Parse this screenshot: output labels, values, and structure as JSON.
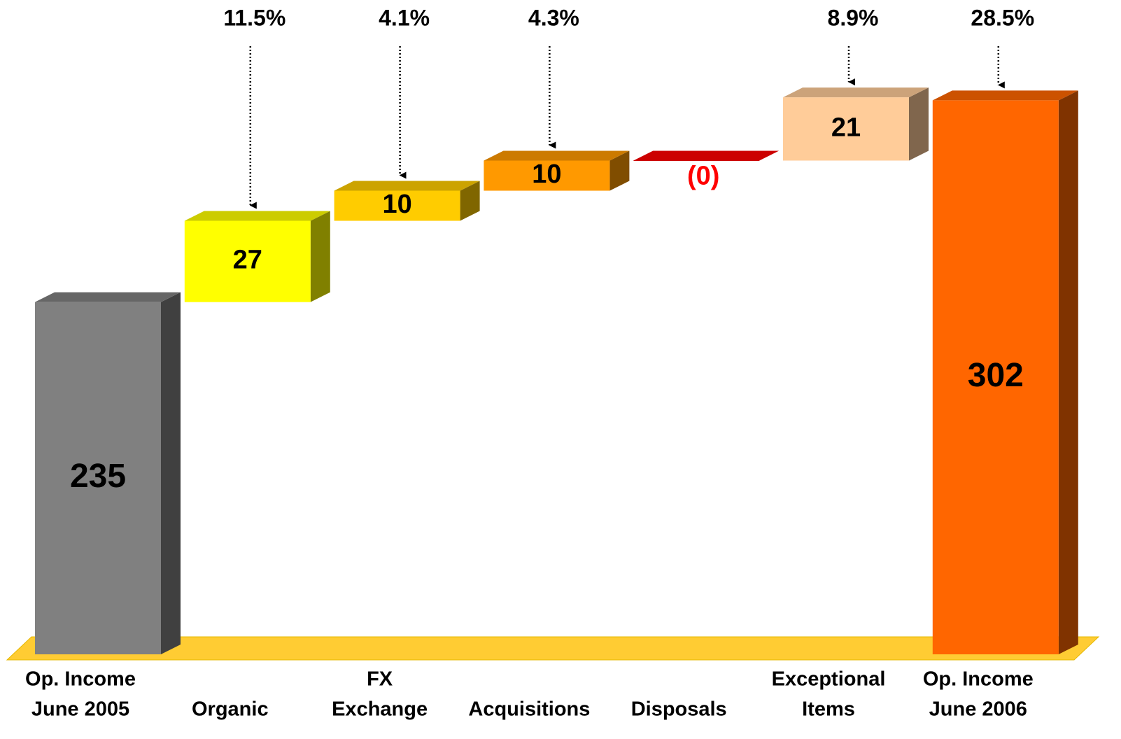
{
  "chart_data": {
    "type": "waterfall",
    "categories": [
      [
        "Op. Income",
        "June 2005"
      ],
      [
        "Organic"
      ],
      [
        "FX",
        "Exchange"
      ],
      [
        "Acquisitions"
      ],
      [
        "Disposals"
      ],
      [
        "Exceptional",
        "Items"
      ],
      [
        "Op. Income",
        "June 2006"
      ]
    ],
    "measures": [
      "total",
      "relative",
      "relative",
      "relative",
      "relative",
      "relative",
      "total"
    ],
    "values": [
      235,
      27,
      10,
      10,
      0,
      21,
      302
    ],
    "value_labels": [
      "235",
      "27",
      "10",
      "10",
      "(0)",
      "21",
      "302"
    ],
    "annotations": [
      null,
      "11.5%",
      "4.1%",
      "4.3%",
      null,
      "8.9%",
      "28.5%"
    ],
    "colors": [
      "#808080",
      "#ffff00",
      "#ffcc00",
      "#ff9900",
      "#cc0000",
      "#ffcc99",
      "#ff6600"
    ],
    "value_label_colors": [
      "#000000",
      "#000000",
      "#000000",
      "#000000",
      "#ff0000",
      "#000000",
      "#000000"
    ],
    "floor_color": "#ffcc33",
    "ylim": [
      118,
      320
    ]
  }
}
